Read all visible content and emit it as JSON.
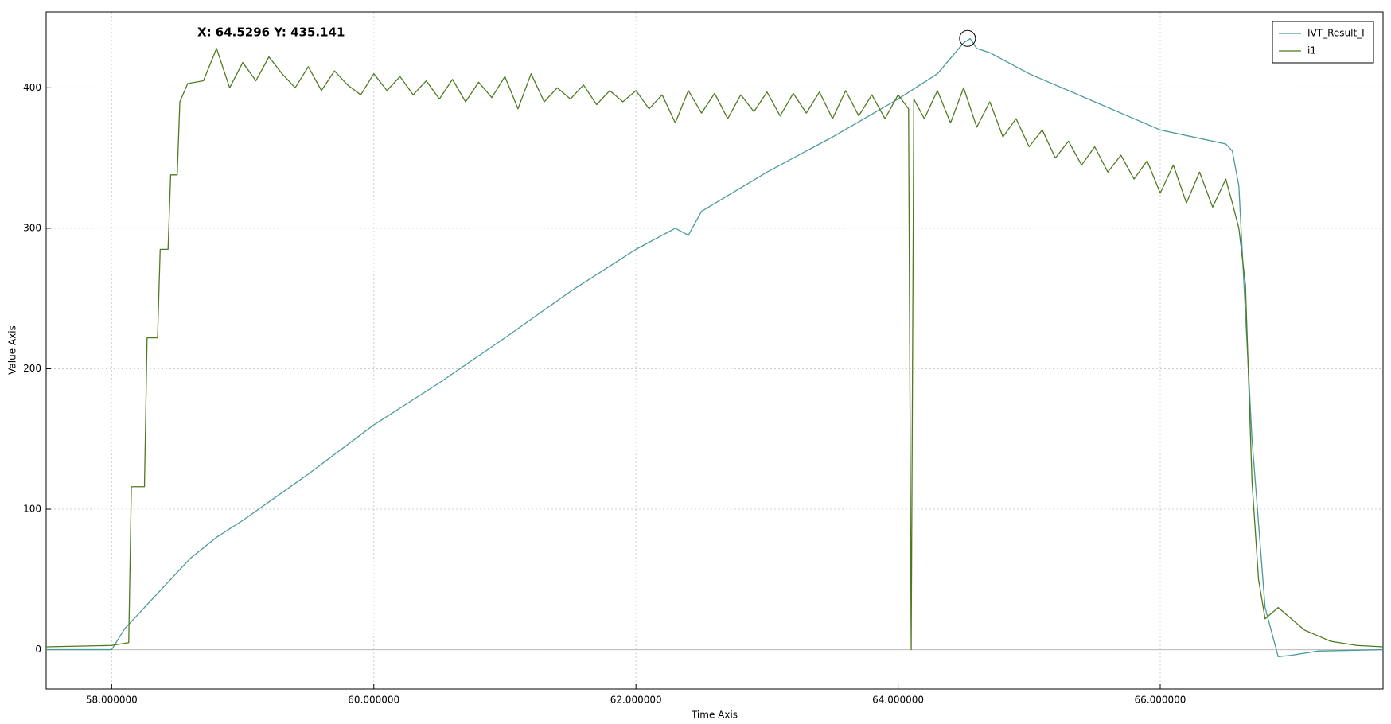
{
  "chart_data": {
    "type": "line",
    "xlabel": "Time Axis",
    "ylabel": "Value Axis",
    "xlim": [
      57.5,
      67.7
    ],
    "ylim": [
      -28,
      454
    ],
    "xticks": [
      {
        "value": 58,
        "label": "58.000000"
      },
      {
        "value": 60,
        "label": "60.000000"
      },
      {
        "value": 62,
        "label": "62.000000"
      },
      {
        "value": 64,
        "label": "64.000000"
      },
      {
        "value": 66,
        "label": "66.000000"
      }
    ],
    "yticks": [
      0,
      100,
      200,
      300,
      400
    ],
    "grid": true,
    "legend": "upper right",
    "annotation": {
      "text": "X: 64.5296 Y: 435.141",
      "x": 64.5296,
      "y": 435.141
    },
    "series": [
      {
        "name": "IVT_Result_I",
        "color": "#4a9a9a",
        "x": [
          57.5,
          58.0,
          58.1,
          58.2,
          58.4,
          58.6,
          58.8,
          59.0,
          59.5,
          60.0,
          60.5,
          61.0,
          61.5,
          62.0,
          62.3,
          62.4,
          62.5,
          63.0,
          63.5,
          64.0,
          64.3,
          64.5,
          64.55,
          64.6,
          64.7,
          65.0,
          65.5,
          66.0,
          66.5,
          66.55,
          66.6,
          66.7,
          66.8,
          66.9,
          67.0,
          67.2,
          67.7
        ],
        "values": [
          0,
          0,
          15,
          25,
          45,
          65,
          80,
          92,
          125,
          160,
          190,
          222,
          255,
          285,
          300,
          295,
          312,
          340,
          365,
          392,
          410,
          432,
          435,
          428,
          425,
          410,
          390,
          370,
          360,
          355,
          330,
          150,
          30,
          -5,
          -4,
          -1,
          0
        ]
      },
      {
        "name": "i1",
        "color": "#4f7a1f",
        "x": [
          57.5,
          58.0,
          58.13,
          58.15,
          58.25,
          58.27,
          58.35,
          58.37,
          58.43,
          58.45,
          58.5,
          58.52,
          58.58,
          58.7,
          58.8,
          58.9,
          59.0,
          59.1,
          59.2,
          59.3,
          59.4,
          59.5,
          59.6,
          59.7,
          59.8,
          59.9,
          60.0,
          60.1,
          60.2,
          60.3,
          60.4,
          60.5,
          60.6,
          60.7,
          60.8,
          60.9,
          61.0,
          61.1,
          61.2,
          61.3,
          61.4,
          61.5,
          61.6,
          61.7,
          61.8,
          61.9,
          62.0,
          62.1,
          62.2,
          62.3,
          62.4,
          62.5,
          62.6,
          62.7,
          62.8,
          62.9,
          63.0,
          63.1,
          63.2,
          63.3,
          63.4,
          63.5,
          63.6,
          63.7,
          63.8,
          63.9,
          64.0,
          64.08,
          64.1,
          64.12,
          64.2,
          64.3,
          64.4,
          64.5,
          64.6,
          64.7,
          64.8,
          64.9,
          65.0,
          65.1,
          65.2,
          65.3,
          65.4,
          65.5,
          65.6,
          65.7,
          65.8,
          65.9,
          66.0,
          66.1,
          66.2,
          66.3,
          66.4,
          66.5,
          66.55,
          66.6,
          66.65,
          66.7,
          66.75,
          66.8,
          66.9,
          67.0,
          67.1,
          67.2,
          67.3,
          67.5,
          67.7
        ],
        "values": [
          2,
          3,
          5,
          116,
          116,
          222,
          222,
          285,
          285,
          338,
          338,
          390,
          403,
          405,
          428,
          400,
          418,
          405,
          422,
          410,
          400,
          415,
          398,
          412,
          402,
          395,
          410,
          398,
          408,
          395,
          405,
          392,
          406,
          390,
          404,
          393,
          408,
          385,
          410,
          390,
          400,
          392,
          402,
          388,
          398,
          390,
          398,
          385,
          395,
          375,
          398,
          382,
          396,
          378,
          395,
          383,
          397,
          380,
          396,
          382,
          397,
          378,
          398,
          380,
          395,
          378,
          395,
          385,
          0,
          392,
          378,
          398,
          375,
          400,
          372,
          390,
          365,
          378,
          358,
          370,
          350,
          362,
          345,
          358,
          340,
          352,
          335,
          348,
          325,
          345,
          318,
          340,
          315,
          335,
          318,
          300,
          260,
          120,
          50,
          22,
          30,
          22,
          14,
          10,
          6,
          3,
          2
        ]
      }
    ]
  }
}
